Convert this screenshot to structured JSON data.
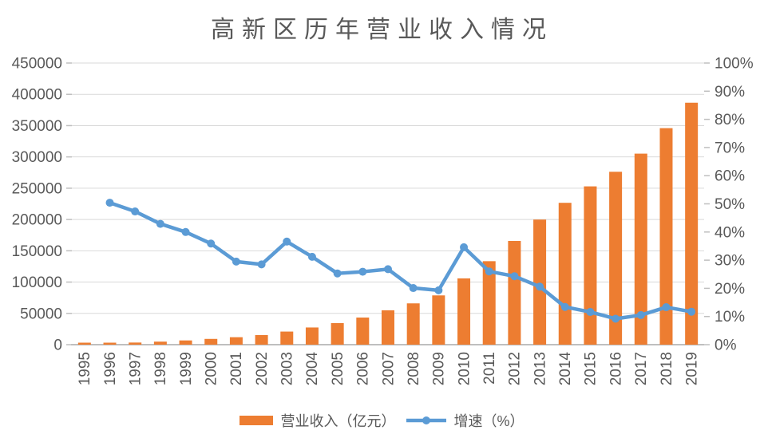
{
  "title": "高新区历年营业收入情况",
  "colors": {
    "bar": "#ED7D31",
    "line": "#5B9BD5",
    "grid": "#D9D9D9",
    "axis_line": "#BFBFBF",
    "tick": "#BFBFBF",
    "text": "#595959",
    "background": "#FFFFFF"
  },
  "legend": [
    {
      "label": "营业收入（亿元）",
      "swatch": "bar"
    },
    {
      "label": "增速（%）",
      "swatch": "line"
    }
  ],
  "axes": {
    "left_ticks": [
      "0",
      "50000",
      "100000",
      "150000",
      "200000",
      "250000",
      "300000",
      "350000",
      "400000",
      "450000"
    ],
    "right_ticks": [
      "0%",
      "10%",
      "20%",
      "30%",
      "40%",
      "50%",
      "60%",
      "70%",
      "80%",
      "90%",
      "100%"
    ]
  },
  "chart_data": {
    "type": "bar",
    "subtype": "bar+line-combo",
    "title": "高新区历年营业收入情况",
    "categories": [
      "1995",
      "1996",
      "1997",
      "1998",
      "1999",
      "2000",
      "2001",
      "2002",
      "2003",
      "2004",
      "2005",
      "2006",
      "2007",
      "2008",
      "2009",
      "2010",
      "2011",
      "2012",
      "2013",
      "2014",
      "2015",
      "2016",
      "2017",
      "2018",
      "2019"
    ],
    "series": [
      {
        "name": "营业收入（亿元）",
        "type": "bar",
        "axis": "left",
        "color": "#ED7D31",
        "values": [
          1529,
          2300,
          3388,
          4840,
          6775,
          9209,
          11928,
          15326,
          20939,
          27466,
          34416,
          43320,
          54925,
          65986,
          78707,
          105917,
          133402,
          165758,
          199902,
          226644,
          252927,
          276244,
          305214,
          345953,
          386583
        ]
      },
      {
        "name": "增速（%）",
        "type": "line",
        "axis": "right",
        "color": "#5B9BD5",
        "values": [
          null,
          50.4,
          47.3,
          42.9,
          40.0,
          35.9,
          29.5,
          28.5,
          36.6,
          31.2,
          25.3,
          25.9,
          26.8,
          20.1,
          19.3,
          34.6,
          26.0,
          24.3,
          20.6,
          13.4,
          11.6,
          9.2,
          10.5,
          13.3,
          11.7
        ]
      }
    ],
    "xlabel": "",
    "ylabel_left": "",
    "ylabel_right": "",
    "ylim_left": [
      0,
      450000
    ],
    "ylim_right": [
      0,
      100
    ],
    "grid": true,
    "legend_position": "bottom",
    "x_label_rotation": -90
  }
}
